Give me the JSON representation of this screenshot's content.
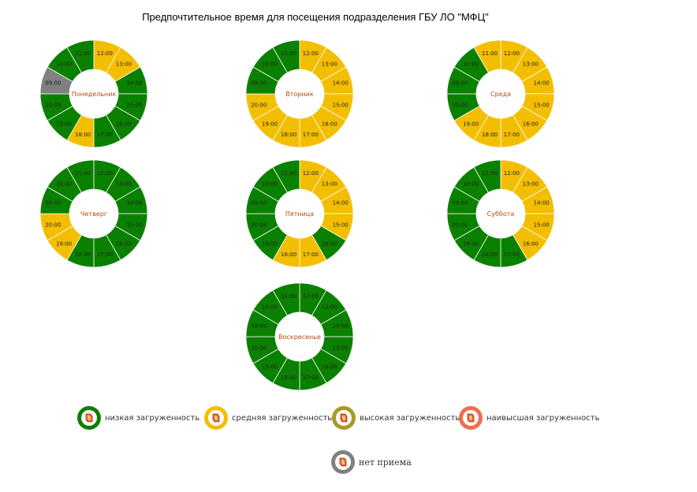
{
  "title": "Предпочтительное время для посещения подразделения ГБУ ЛО \"МФЦ\"",
  "colors": {
    "low": "#0a8000",
    "medium": "#f4be00",
    "high": "#a89b26",
    "highest": "#ee6e50",
    "closed": "#808080"
  },
  "chart_data": [
    {
      "type": "donut",
      "center_label": "Понедельник",
      "hours": [
        "12:00",
        "13:00",
        "14:00",
        "15:00",
        "16:00",
        "17:00",
        "18:00",
        "19:00",
        "20:00",
        "09:00",
        "10:00",
        "11:00"
      ],
      "load": [
        "medium",
        "medium",
        "low",
        "low",
        "low",
        "low",
        "medium",
        "low",
        "low",
        "closed",
        "low",
        "low"
      ]
    },
    {
      "type": "donut",
      "center_label": "Вторник",
      "hours": [
        "12:00",
        "13:00",
        "14:00",
        "15:00",
        "16:00",
        "17:00",
        "18:00",
        "19:00",
        "20:00",
        "09:00",
        "10:00",
        "11:00"
      ],
      "load": [
        "medium",
        "medium",
        "medium",
        "medium",
        "medium",
        "medium",
        "medium",
        "medium",
        "medium",
        "low",
        "low",
        "low"
      ]
    },
    {
      "type": "donut",
      "center_label": "Среда",
      "hours": [
        "12:00",
        "13:00",
        "14:00",
        "15:00",
        "16:00",
        "17:00",
        "18:00",
        "19:00",
        "20:00",
        "09:00",
        "10:00",
        "11:00"
      ],
      "load": [
        "medium",
        "medium",
        "medium",
        "medium",
        "medium",
        "medium",
        "medium",
        "medium",
        "low",
        "low",
        "low",
        "medium"
      ]
    },
    {
      "type": "donut",
      "center_label": "Четверг",
      "hours": [
        "12:00",
        "13:00",
        "14:00",
        "15:00",
        "16:00",
        "17:00",
        "18:00",
        "19:00",
        "20:00",
        "09:00",
        "10:00",
        "11:00"
      ],
      "load": [
        "low",
        "low",
        "low",
        "low",
        "low",
        "low",
        "low",
        "medium",
        "medium",
        "low",
        "low",
        "low"
      ]
    },
    {
      "type": "donut",
      "center_label": "Пятница",
      "hours": [
        "12:00",
        "13:00",
        "14:00",
        "15:00",
        "16:00",
        "17:00",
        "18:00",
        "19:00",
        "20:00",
        "09:00",
        "10:00",
        "11:00"
      ],
      "load": [
        "medium",
        "medium",
        "medium",
        "medium",
        "low",
        "medium",
        "medium",
        "low",
        "low",
        "low",
        "low",
        "low"
      ]
    },
    {
      "type": "donut",
      "center_label": "Суббота",
      "hours": [
        "12:00",
        "13:00",
        "14:00",
        "15:00",
        "16:00",
        "17:00",
        "18:00",
        "19:00",
        "20:00",
        "09:00",
        "10:00",
        "11:00"
      ],
      "load": [
        "medium",
        "medium",
        "medium",
        "medium",
        "medium",
        "low",
        "low",
        "low",
        "low",
        "low",
        "low",
        "low"
      ]
    },
    {
      "type": "donut",
      "center_label": "Воскресенье",
      "hours": [
        "12:00",
        "13:00",
        "14:00",
        "15:00",
        "16:00",
        "17:00",
        "18:00",
        "19:00",
        "20:00",
        "09:00",
        "10:00",
        "11:00"
      ],
      "load": [
        "low",
        "low",
        "low",
        "low",
        "low",
        "low",
        "low",
        "low",
        "low",
        "low",
        "low",
        "low"
      ]
    }
  ],
  "legend": [
    {
      "key": "low",
      "label": "низкая загруженность"
    },
    {
      "key": "medium",
      "label": "средняя загруженность"
    },
    {
      "key": "high",
      "label": "высокая загруженность"
    },
    {
      "key": "highest",
      "label": "наивысшая загруженность"
    },
    {
      "key": "closed",
      "label": "нет приема"
    }
  ]
}
